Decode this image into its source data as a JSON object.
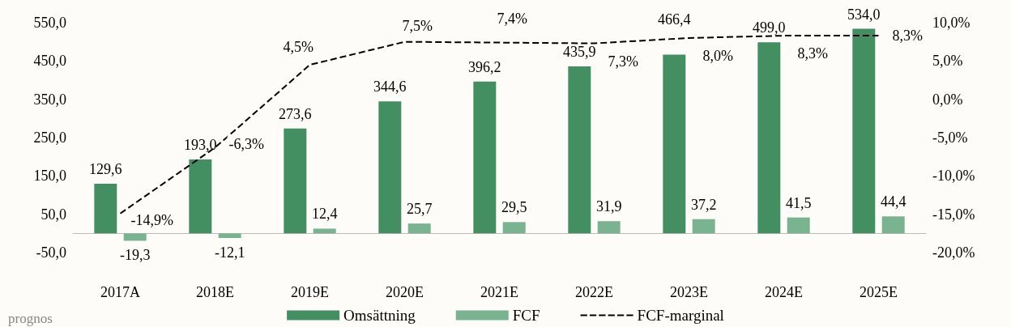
{
  "chart_data": {
    "type": "bar",
    "categories": [
      "2017A",
      "2018E",
      "2019E",
      "2020E",
      "2021E",
      "2022E",
      "2023E",
      "2024E",
      "2025E"
    ],
    "series": [
      {
        "name": "Omsättning",
        "color": "#438f62",
        "values": [
          129.6,
          193.0,
          273.6,
          344.6,
          396.2,
          435.9,
          466.4,
          499.0,
          534.0
        ],
        "value_labels": [
          "129,6",
          "193,0",
          "273,6",
          "344,6",
          "396,2",
          "435,9",
          "466,4",
          "499,0",
          "534,0"
        ]
      },
      {
        "name": "FCF",
        "color": "#7ab38f",
        "values": [
          -19.3,
          -12.1,
          12.4,
          25.7,
          29.5,
          31.9,
          37.2,
          41.5,
          44.4
        ],
        "value_labels": [
          "-19,3",
          "-12,1",
          "12,4",
          "25,7",
          "29,5",
          "31,9",
          "37,2",
          "41,5",
          "44,4"
        ]
      },
      {
        "name": "FCF-marginal",
        "type": "line",
        "axis": "y2",
        "color": "#000000",
        "line_style": "dashed",
        "values": [
          -14.9,
          -6.3,
          4.5,
          7.5,
          7.4,
          7.3,
          8.0,
          8.3,
          8.3
        ],
        "value_labels": [
          "-14,9%",
          "-6,3%",
          "4,5%",
          "7,5%",
          "7,4%",
          "7,3%",
          "8,0%",
          "8,3%",
          "8,3%"
        ]
      }
    ],
    "ylim": [
      -50,
      550
    ],
    "yticks": [
      {
        "value": -50,
        "label": "-50,0"
      },
      {
        "value": 50,
        "label": "50,0"
      },
      {
        "value": 150,
        "label": "150,0"
      },
      {
        "value": 250,
        "label": "250,0"
      },
      {
        "value": 350,
        "label": "350,0"
      },
      {
        "value": 450,
        "label": "450,0"
      },
      {
        "value": 550,
        "label": "550,0"
      }
    ],
    "y2lim": [
      -20,
      10
    ],
    "y2ticks": [
      {
        "value": -20,
        "label": "-20,0%"
      },
      {
        "value": -15,
        "label": "-15,0%"
      },
      {
        "value": -10,
        "label": "-10,0%"
      },
      {
        "value": -5,
        "label": "-5,0%"
      },
      {
        "value": 0,
        "label": "0,0%"
      },
      {
        "value": 5,
        "label": "5,0%"
      },
      {
        "value": 10,
        "label": "10,0%"
      }
    ],
    "legend": "bottom",
    "grid": false,
    "annotations": [
      "prognos"
    ]
  }
}
